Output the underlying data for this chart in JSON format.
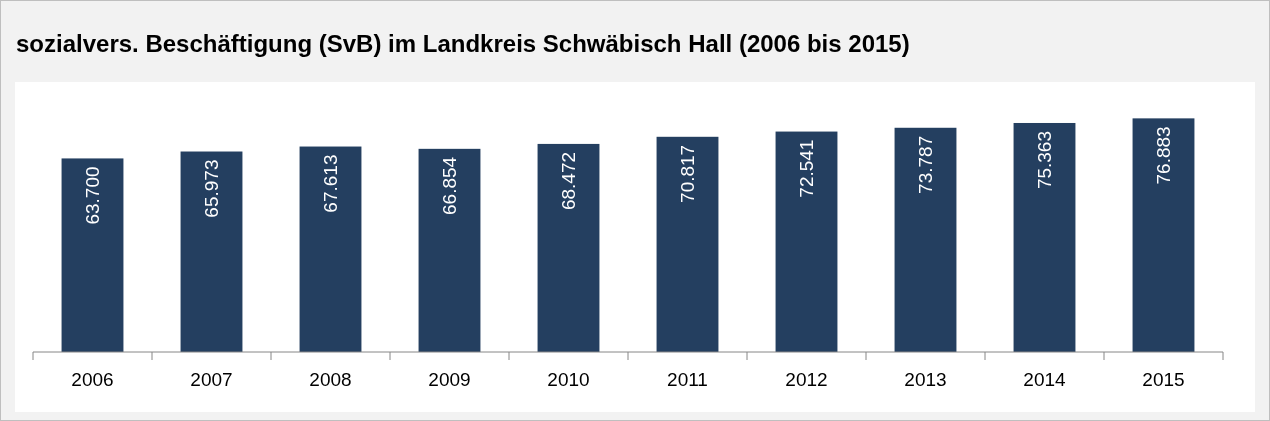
{
  "chart_data": {
    "type": "bar",
    "title": "sozialvers. Beschäftigung (SvB) im Landkreis Schwäbisch Hall (2006 bis 2015)",
    "categories": [
      "2006",
      "2007",
      "2008",
      "2009",
      "2010",
      "2011",
      "2012",
      "2013",
      "2014",
      "2015"
    ],
    "values": [
      63700,
      65973,
      67613,
      66854,
      68472,
      70817,
      72541,
      73787,
      75363,
      76883
    ],
    "value_labels": [
      "63.700",
      "65.973",
      "67.613",
      "66.854",
      "68.472",
      "70.817",
      "72.541",
      "73.787",
      "75.363",
      "76.883"
    ],
    "color": "#243f60"
  }
}
